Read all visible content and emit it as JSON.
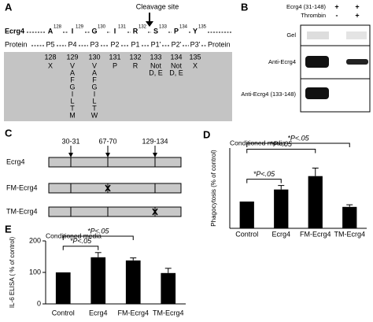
{
  "panel_a": {
    "label": "A",
    "cleavage_label": "Cleavage site",
    "protein_name": "Ecrg4",
    "protein_label": "Protein",
    "residues": [
      {
        "aa": "A",
        "num": "128"
      },
      {
        "aa": "I",
        "num": "129"
      },
      {
        "aa": "G",
        "num": "130"
      },
      {
        "aa": "I",
        "num": "131"
      },
      {
        "aa": "R",
        "num": "132"
      },
      {
        "aa": "S",
        "num": "133"
      },
      {
        "aa": "P",
        "num": "134"
      },
      {
        "aa": "Y",
        "num": "135"
      }
    ],
    "positions": [
      {
        "site": "P5",
        "num": "128",
        "allowed": [
          "X"
        ]
      },
      {
        "site": "P4",
        "num": "129",
        "allowed": [
          "V",
          "A",
          "F",
          "G",
          "I",
          "L",
          "T",
          "M"
        ]
      },
      {
        "site": "P3",
        "num": "130",
        "allowed": [
          "V",
          "A",
          "F",
          "G",
          "I",
          "L",
          "T",
          "W"
        ]
      },
      {
        "site": "P2",
        "num": "131",
        "allowed": [
          "P"
        ]
      },
      {
        "site": "P1",
        "num": "132",
        "allowed": [
          "R"
        ]
      },
      {
        "site": "P1'",
        "num": "133",
        "allowed": [
          "Not",
          "D, E"
        ]
      },
      {
        "site": "P2'",
        "num": "134",
        "allowed": [
          "Not",
          "D, E"
        ]
      },
      {
        "site": "P3'",
        "num": "135",
        "allowed": [
          "X"
        ]
      }
    ]
  },
  "panel_b": {
    "label": "B",
    "conditions": [
      {
        "name": "Ecrg4 (31-148)",
        "lanes": [
          "+",
          "+"
        ]
      },
      {
        "name": "Thrombin",
        "lanes": [
          "-",
          "+"
        ]
      }
    ],
    "blots": [
      "Gel",
      "Anti-Ecrg4",
      "Anti-Ecrg4 (133-148)"
    ]
  },
  "panel_c": {
    "label": "C",
    "sites": [
      "30-31",
      "67-70",
      "129-134"
    ],
    "constructs": [
      "Ecrg4",
      "FM-Ecrg4",
      "TM-Ecrg4"
    ]
  },
  "chart_data": [
    {
      "panel": "D",
      "type": "bar",
      "title": "Conditioned media",
      "y_label": "Phagocytosis (% of control)",
      "categories": [
        "Control",
        "Ecrg4",
        "FM-Ecrg4",
        "TM-Ecrg4"
      ],
      "values": [
        100,
        145,
        195,
        80
      ],
      "errors": [
        null,
        15,
        30,
        8
      ],
      "color": "#000000",
      "ylim": [
        0,
        300
      ],
      "significance": [
        "*P<.05",
        "*P<.05",
        "*P<.05"
      ]
    },
    {
      "panel": "E",
      "type": "bar",
      "title": "Conditioned media",
      "y_label": "IL-6 ELISA ( % of control)",
      "categories": [
        "Control",
        "Ecrg4",
        "FM-Ecrg4",
        "TM-Ecrg4"
      ],
      "values": [
        100,
        148,
        138,
        98
      ],
      "errors": [
        null,
        15,
        8,
        15
      ],
      "color": "#000000",
      "ylim": [
        0,
        200
      ],
      "yticks": [
        0,
        100,
        200
      ],
      "significance": [
        "*P<.05",
        "*P<.05"
      ]
    }
  ]
}
